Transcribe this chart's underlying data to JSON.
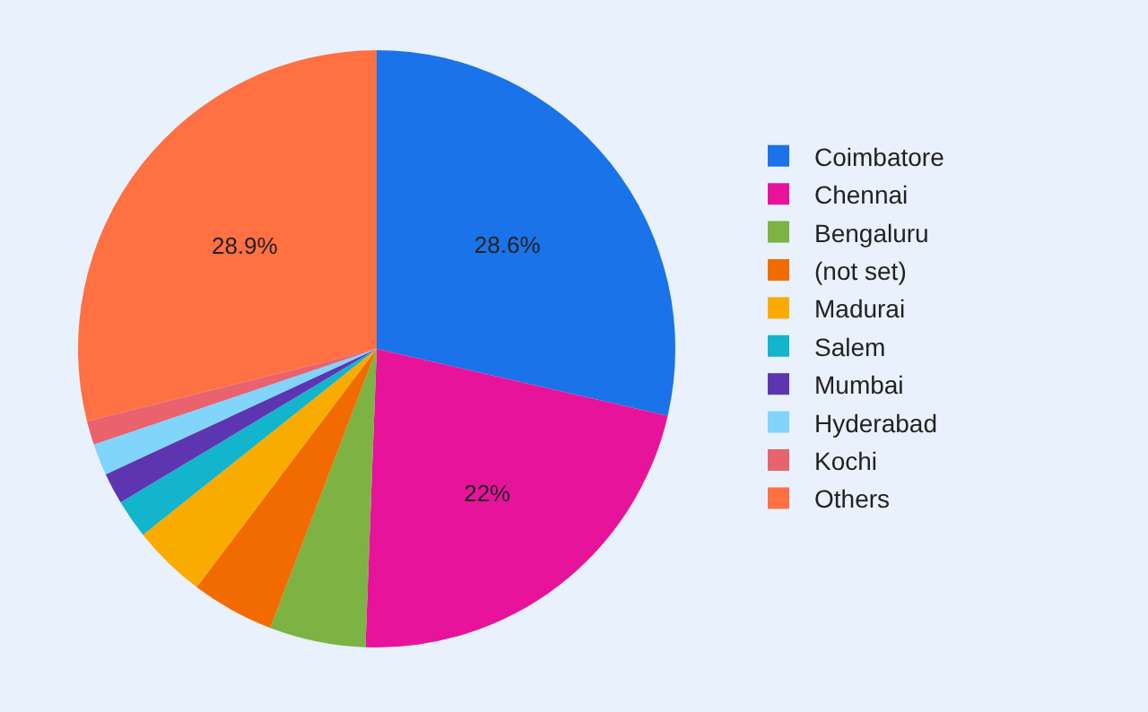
{
  "chart_data": {
    "type": "pie",
    "categories": [
      "Coimbatore",
      "Chennai",
      "Bengaluru",
      "(not set)",
      "Madurai",
      "Salem",
      "Mumbai",
      "Hyderabad",
      "Kochi",
      "Others"
    ],
    "values": [
      28.6,
      22,
      5.2,
      4.5,
      4,
      2.1,
      1.7,
      1.7,
      1.3,
      28.9
    ],
    "value_labels": [
      "28.6%",
      "22%",
      null,
      null,
      null,
      null,
      null,
      null,
      null,
      "28.9%"
    ],
    "colors": [
      "#1a73e8",
      "#e8139b",
      "#7cb342",
      "#f26b00",
      "#f9ab00",
      "#12b5cb",
      "#5e35b1",
      "#81d4fa",
      "#e8636e",
      "#ff7043"
    ],
    "legend": "right"
  }
}
